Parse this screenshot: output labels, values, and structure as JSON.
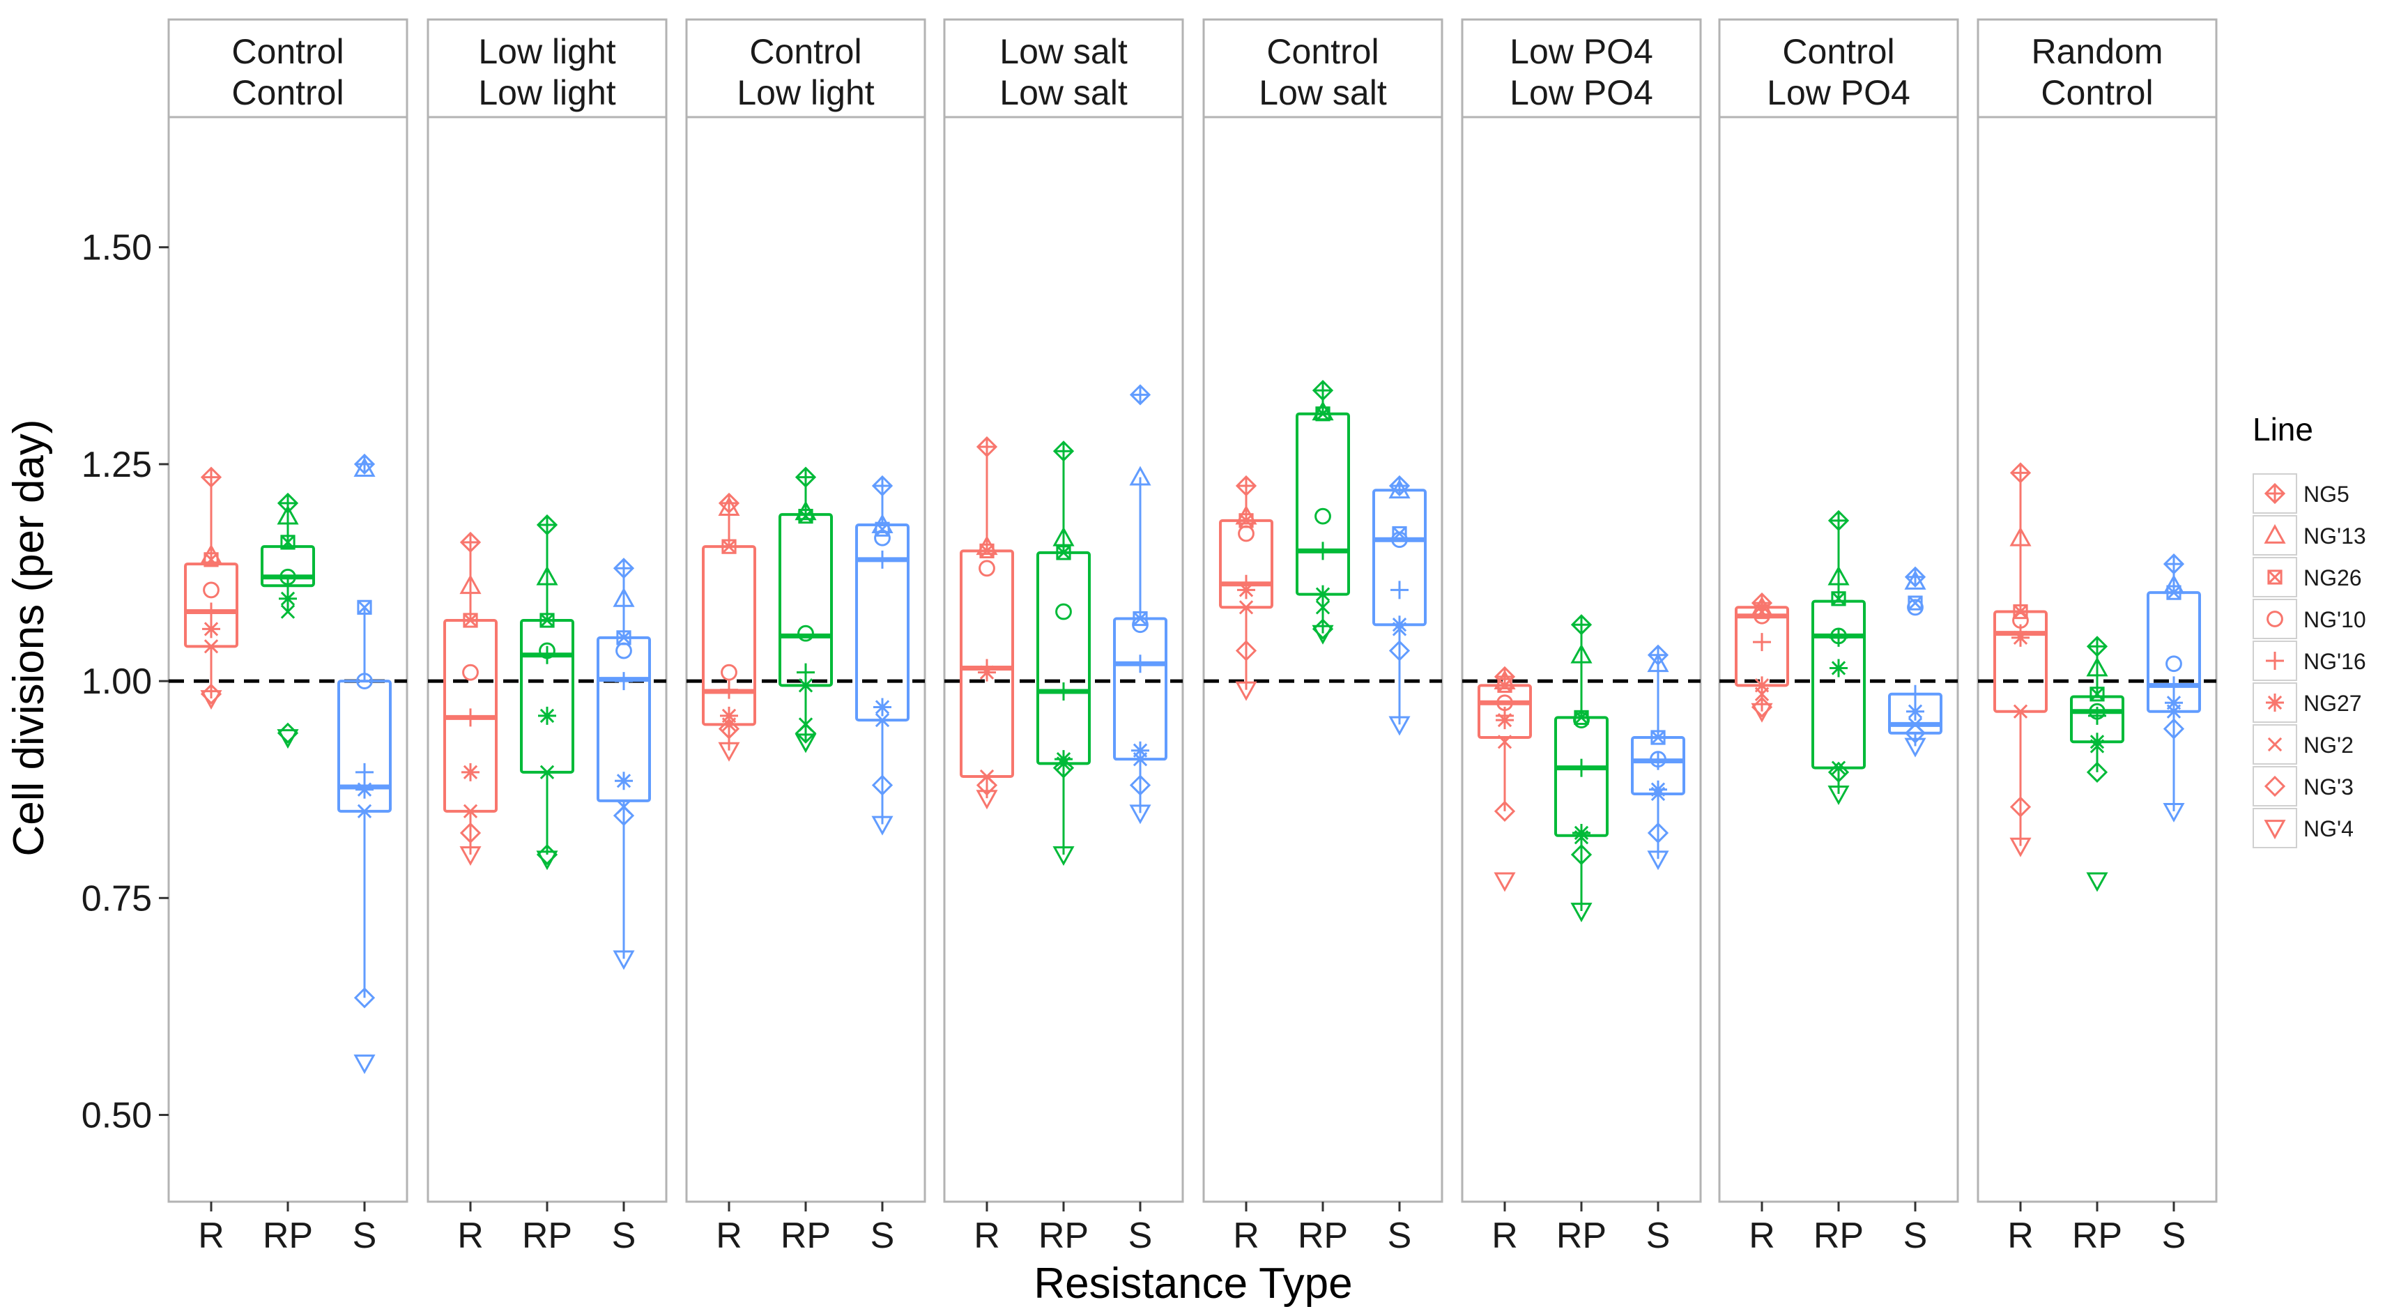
{
  "chart_data": {
    "type": "boxplot",
    "xlabel": "Resistance Type",
    "ylabel": "Cell divisions (per day)",
    "ylim": [
      0.4,
      1.65
    ],
    "y_ticks": [
      0.5,
      0.75,
      1.0,
      1.25,
      1.5
    ],
    "y_tick_labels": [
      "0.50",
      "0.75",
      "1.00",
      "1.25",
      "1.50"
    ],
    "reference_line": 1.0,
    "categories": [
      "R",
      "RP",
      "S"
    ],
    "category_colors": {
      "R": "#F8766D",
      "RP": "#00BA38",
      "S": "#619CFF"
    },
    "legend": {
      "title": "Line",
      "entries": [
        "NG5",
        "NG'13",
        "NG26",
        "NG'10",
        "NG'16",
        "NG27",
        "NG'2",
        "NG'3",
        "NG'4"
      ],
      "shapes": [
        "diamond-plus",
        "triangle-up",
        "square-x",
        "circle",
        "plus",
        "asterisk",
        "cross",
        "diamond",
        "triangle-down"
      ]
    },
    "panels": [
      {
        "strip": [
          "Control",
          "Control"
        ],
        "boxes": [
          {
            "type": "R",
            "q1": 1.04,
            "median": 1.08,
            "q3": 1.135,
            "wlo": 0.98,
            "whi": 1.235,
            "points": [
              1.235,
              1.145,
              1.14,
              1.105,
              1.08,
              1.06,
              1.04,
              0.985,
              0.98
            ]
          },
          {
            "type": "RP",
            "q1": 1.11,
            "median": 1.12,
            "q3": 1.155,
            "wlo": 1.08,
            "whi": 1.205,
            "points": [
              1.205,
              1.19,
              1.16,
              1.12,
              1.11,
              1.095,
              1.08,
              0.94,
              0.935
            ]
          },
          {
            "type": "S",
            "q1": 0.85,
            "median": 0.878,
            "q3": 1.0,
            "wlo": 0.635,
            "whi": 1.085,
            "points": [
              1.25,
              1.245,
              1.085,
              1.0,
              0.895,
              0.875,
              0.85,
              0.635,
              0.56
            ]
          }
        ]
      },
      {
        "strip": [
          "Low light",
          "Low light"
        ],
        "boxes": [
          {
            "type": "R",
            "q1": 0.85,
            "median": 0.958,
            "q3": 1.07,
            "wlo": 0.8,
            "whi": 1.16,
            "points": [
              1.16,
              1.11,
              1.07,
              1.01,
              0.958,
              0.895,
              0.85,
              0.825,
              0.8
            ]
          },
          {
            "type": "RP",
            "q1": 0.895,
            "median": 1.03,
            "q3": 1.07,
            "wlo": 0.8,
            "whi": 1.18,
            "points": [
              1.18,
              1.12,
              1.07,
              1.035,
              1.03,
              0.96,
              0.895,
              0.8,
              0.795
            ]
          },
          {
            "type": "S",
            "q1": 0.862,
            "median": 1.002,
            "q3": 1.05,
            "wlo": 0.68,
            "whi": 1.13,
            "points": [
              1.13,
              1.095,
              1.05,
              1.035,
              1.0,
              0.885,
              0.855,
              0.845,
              0.68
            ]
          }
        ]
      },
      {
        "strip": [
          "Control",
          "Low light"
        ],
        "boxes": [
          {
            "type": "R",
            "q1": 0.95,
            "median": 0.988,
            "q3": 1.155,
            "wlo": 0.92,
            "whi": 1.205,
            "points": [
              1.205,
              1.2,
              1.155,
              1.01,
              0.99,
              0.96,
              0.95,
              0.945,
              0.92
            ]
          },
          {
            "type": "RP",
            "q1": 0.995,
            "median": 1.052,
            "q3": 1.192,
            "wlo": 0.93,
            "whi": 1.235,
            "points": [
              1.235,
              1.195,
              1.19,
              1.055,
              1.01,
              0.995,
              0.95,
              0.94,
              0.93
            ]
          },
          {
            "type": "S",
            "q1": 0.955,
            "median": 1.14,
            "q3": 1.18,
            "wlo": 0.835,
            "whi": 1.225,
            "points": [
              1.225,
              1.18,
              1.175,
              1.165,
              1.14,
              0.97,
              0.955,
              0.88,
              0.835
            ]
          }
        ]
      },
      {
        "strip": [
          "Low salt",
          "Low salt"
        ],
        "boxes": [
          {
            "type": "R",
            "q1": 0.89,
            "median": 1.015,
            "q3": 1.15,
            "wlo": 0.865,
            "whi": 1.27,
            "points": [
              1.27,
              1.155,
              1.15,
              1.13,
              1.015,
              1.01,
              0.89,
              0.88,
              0.865
            ]
          },
          {
            "type": "RP",
            "q1": 0.905,
            "median": 0.988,
            "q3": 1.148,
            "wlo": 0.8,
            "whi": 1.265,
            "points": [
              1.265,
              1.165,
              1.148,
              1.08,
              0.988,
              0.91,
              0.905,
              0.9,
              0.8
            ]
          },
          {
            "type": "S",
            "q1": 0.91,
            "median": 1.02,
            "q3": 1.072,
            "wlo": 0.848,
            "whi": 1.235,
            "points": [
              1.33,
              1.235,
              1.072,
              1.065,
              1.02,
              0.92,
              0.91,
              0.88,
              0.848
            ]
          }
        ]
      },
      {
        "strip": [
          "Control",
          "Low salt"
        ],
        "boxes": [
          {
            "type": "R",
            "q1": 1.085,
            "median": 1.112,
            "q3": 1.185,
            "wlo": 0.99,
            "whi": 1.225,
            "points": [
              1.225,
              1.19,
              1.185,
              1.17,
              1.112,
              1.105,
              1.085,
              1.035,
              0.99
            ]
          },
          {
            "type": "RP",
            "q1": 1.1,
            "median": 1.15,
            "q3": 1.308,
            "wlo": 1.055,
            "whi": 1.335,
            "points": [
              1.335,
              1.31,
              1.308,
              1.19,
              1.15,
              1.1,
              1.085,
              1.06,
              1.055
            ]
          },
          {
            "type": "S",
            "q1": 1.065,
            "median": 1.163,
            "q3": 1.22,
            "wlo": 0.95,
            "whi": 1.225,
            "points": [
              1.225,
              1.22,
              1.17,
              1.163,
              1.105,
              1.065,
              1.06,
              1.035,
              0.95
            ]
          }
        ]
      },
      {
        "strip": [
          "Low PO4",
          "Low PO4"
        ],
        "boxes": [
          {
            "type": "R",
            "q1": 0.935,
            "median": 0.975,
            "q3": 0.995,
            "wlo": 0.85,
            "whi": 1.005,
            "points": [
              1.005,
              1.0,
              0.995,
              0.975,
              0.96,
              0.955,
              0.93,
              0.85,
              0.77
            ]
          },
          {
            "type": "RP",
            "q1": 0.822,
            "median": 0.9,
            "q3": 0.958,
            "wlo": 0.735,
            "whi": 1.065,
            "points": [
              1.065,
              1.03,
              0.958,
              0.955,
              0.9,
              0.825,
              0.82,
              0.8,
              0.735
            ]
          },
          {
            "type": "S",
            "q1": 0.87,
            "median": 0.908,
            "q3": 0.935,
            "wlo": 0.795,
            "whi": 1.03,
            "points": [
              1.03,
              1.02,
              0.935,
              0.91,
              0.908,
              0.875,
              0.87,
              0.825,
              0.795
            ]
          }
        ]
      },
      {
        "strip": [
          "Control",
          "Low PO4"
        ],
        "boxes": [
          {
            "type": "R",
            "q1": 0.995,
            "median": 1.075,
            "q3": 1.085,
            "wlo": 0.965,
            "whi": 1.09,
            "points": [
              1.09,
              1.085,
              1.08,
              1.075,
              1.045,
              0.995,
              0.985,
              0.97,
              0.965
            ]
          },
          {
            "type": "RP",
            "q1": 0.9,
            "median": 1.052,
            "q3": 1.092,
            "wlo": 0.87,
            "whi": 1.185,
            "points": [
              1.185,
              1.12,
              1.095,
              1.052,
              1.05,
              1.015,
              0.9,
              0.895,
              0.87
            ]
          },
          {
            "type": "S",
            "q1": 0.94,
            "median": 0.95,
            "q3": 0.985,
            "wlo": 0.925,
            "whi": 0.985,
            "points": [
              1.12,
              1.115,
              1.09,
              1.085,
              0.985,
              0.965,
              0.95,
              0.94,
              0.925
            ]
          }
        ]
      },
      {
        "strip": [
          "Random",
          "Control"
        ],
        "boxes": [
          {
            "type": "R",
            "q1": 0.965,
            "median": 1.055,
            "q3": 1.08,
            "wlo": 0.81,
            "whi": 1.24,
            "points": [
              1.24,
              1.165,
              1.08,
              1.07,
              1.055,
              1.05,
              0.965,
              0.855,
              0.81
            ]
          },
          {
            "type": "RP",
            "q1": 0.93,
            "median": 0.965,
            "q3": 0.982,
            "wlo": 0.895,
            "whi": 1.04,
            "points": [
              1.04,
              1.015,
              0.985,
              0.965,
              0.96,
              0.93,
              0.925,
              0.895,
              0.77
            ]
          },
          {
            "type": "S",
            "q1": 0.965,
            "median": 0.995,
            "q3": 1.102,
            "wlo": 0.85,
            "whi": 1.135,
            "points": [
              1.135,
              1.11,
              1.102,
              1.02,
              0.995,
              0.975,
              0.965,
              0.945,
              0.85
            ]
          }
        ]
      }
    ]
  }
}
